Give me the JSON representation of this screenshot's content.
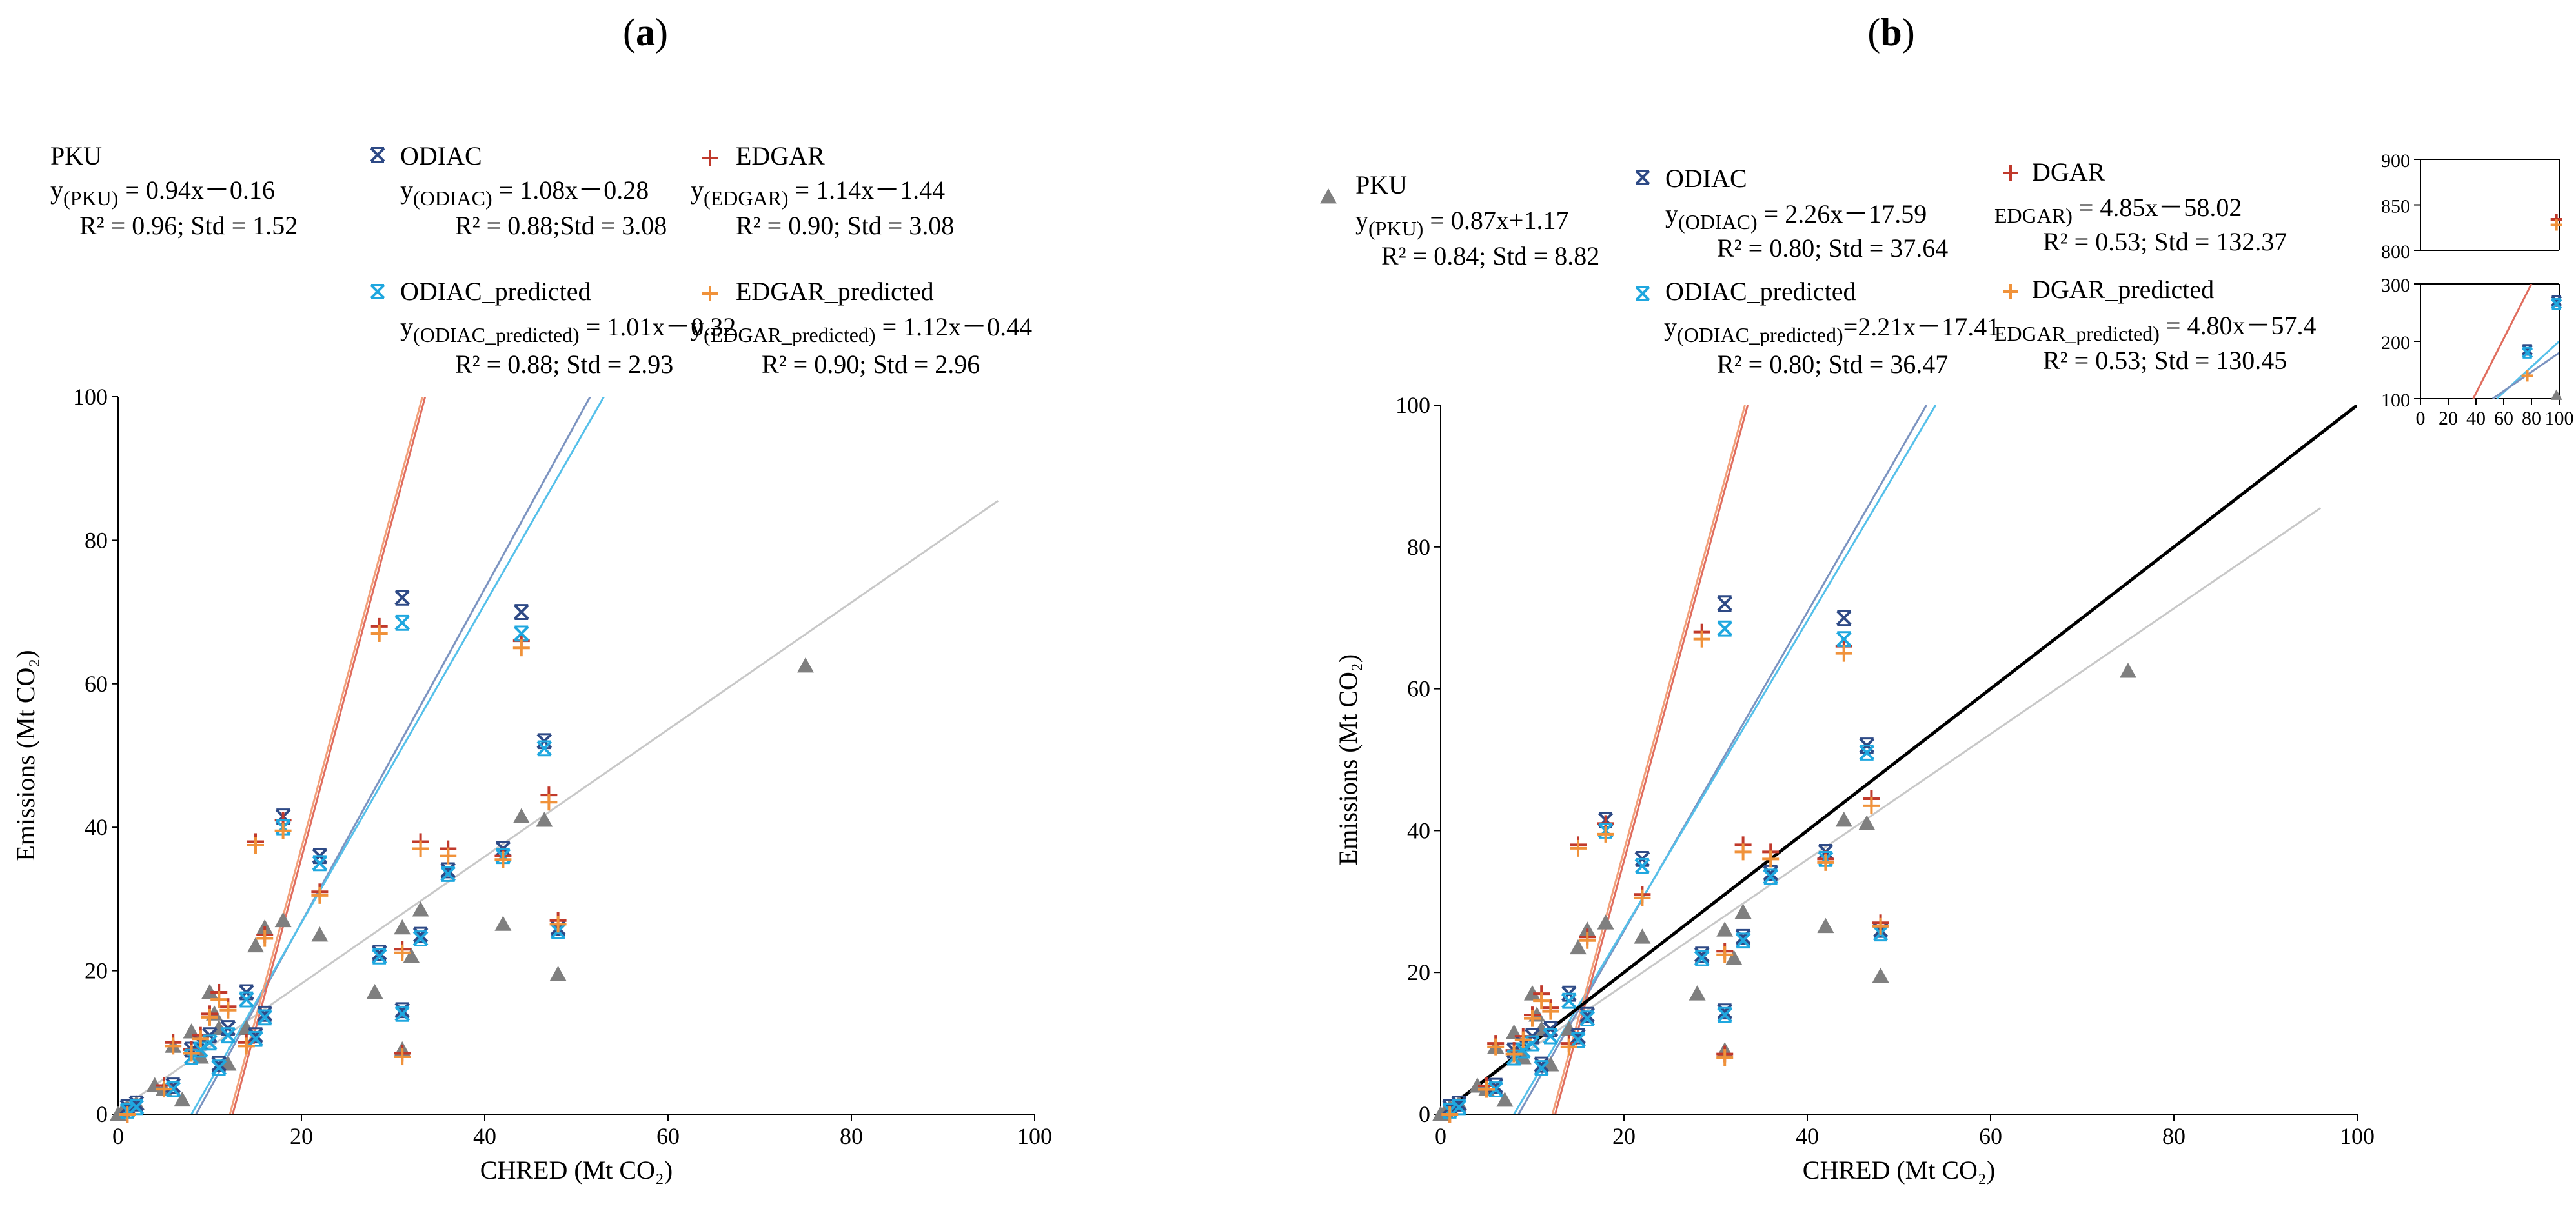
{
  "colors": {
    "PKU": "#7f7f7f",
    "ODIAC": "#2e4a86",
    "EDGAR": "#c0392b",
    "ODIAC_predicted": "#1fa7df",
    "EDGAR_predicted": "#f0923a",
    "fit_PKU": "#c8c8c8",
    "fit_ODIAC": "#7b93c0",
    "fit_ODIAC_pred": "#55c0ea",
    "fit_EDGAR": "#e06d5e",
    "fit_EDGAR_pred": "#f2a07a",
    "one_to_one": "#000000"
  },
  "panels": {
    "a": {
      "label_pre": "(",
      "label_letter": "a",
      "label_post": ")",
      "legend": {
        "pku_name": "PKU",
        "pku_eq_pre": "y",
        "pku_eq_sub": "(PKU)",
        "pku_eq_post": " = 0.94x－0.16",
        "pku_stats": "R² = 0.96; Std = 1.52",
        "odiac_name": "ODIAC",
        "odiac_eq_pre": "y",
        "odiac_eq_sub": "(ODIAC)",
        "odiac_eq_post": " = 1.08x－0.28",
        "odiac_stats": "R² = 0.88;Std = 3.08",
        "edgar_name": "EDGAR",
        "edgar_eq_pre": "y",
        "edgar_eq_sub": "(EDGAR)",
        "edgar_eq_post": " = 1.14x－1.44",
        "edgar_stats": "R² = 0.90; Std = 3.08",
        "odiacp_name": "ODIAC_predicted",
        "odiacp_eq_pre": "y",
        "odiacp_eq_sub": "(ODIAC_predicted)",
        "odiacp_eq_post": " = 1.01x－0.32",
        "odiacp_stats": "R² = 0.88; Std = 2.93",
        "edgarp_name": "EDGAR_predicted",
        "edgarp_eq_pre": "y",
        "edgarp_eq_sub": "(EDGAR_predicted)",
        "edgarp_eq_post": " = 1.12x－0.44",
        "edgarp_stats": "R² = 0.90; Std = 2.96"
      }
    },
    "b": {
      "label_pre": "(",
      "label_letter": "b",
      "label_post": ")",
      "legend": {
        "pku_name": "PKU",
        "pku_eq_pre": "y",
        "pku_eq_sub": "(PKU)",
        "pku_eq_post": " = 0.87x+1.17",
        "pku_stats": "R² = 0.84; Std = 8.82",
        "odiac_name": "ODIAC",
        "odiac_eq_pre": "y",
        "odiac_eq_sub": "(ODIAC)",
        "odiac_eq_post": " = 2.26x－17.59",
        "odiac_stats": "R² = 0.80; Std = 37.64",
        "edgar_name": "DGAR",
        "edgar_eq_sub": "EDGAR)",
        "edgar_eq_post": " = 4.85x－58.02",
        "edgar_stats": "R² = 0.53; Std = 132.37",
        "odiacp_name": "ODIAC_predicted",
        "odiacp_eq_pre": "y",
        "odiacp_eq_sub": "(ODIAC_predicted)",
        "odiacp_eq_post": "=2.21x－17.41",
        "odiacp_stats": "R² = 0.80; Std = 36.47",
        "edgarp_name": "DGAR_predicted",
        "edgarp_eq_sub": "EDGAR_predicted)",
        "edgarp_eq_post": " = 4.80x－57.4",
        "edgarp_stats": "R² = 0.53; Std = 130.45"
      }
    }
  },
  "chart_data": [
    {
      "panel": "a",
      "type": "scatter",
      "title": "",
      "xlabel": "CHRED (Mt CO₂)",
      "ylabel": "Emissions (Mt CO₂)",
      "xlim": [
        0,
        100
      ],
      "ylim": [
        0,
        100
      ],
      "xticks": [
        "0",
        "20",
        "40",
        "60",
        "80",
        "100"
      ],
      "yticks": [
        "0",
        "20",
        "40",
        "60",
        "80",
        "100"
      ],
      "series": [
        {
          "name": "PKU",
          "marker": "triangle",
          "x": [
            0,
            0.5,
            1,
            2,
            4,
            5,
            6,
            7,
            8,
            9,
            10,
            10.5,
            11,
            12,
            14,
            15,
            16,
            18,
            22,
            28,
            31,
            31,
            32,
            33,
            42,
            44,
            46.5,
            48,
            75
          ],
          "y": [
            0,
            0.5,
            1,
            1.5,
            4,
            3.5,
            9.5,
            2,
            11.5,
            8,
            17,
            14,
            12,
            7,
            12,
            23.5,
            26,
            27,
            25,
            17,
            26,
            9,
            22,
            28.5,
            26.5,
            41.5,
            41,
            19.5,
            62.5
          ]
        },
        {
          "name": "ODIAC",
          "marker": "star",
          "x": [
            1,
            2,
            6,
            8,
            9,
            10,
            11,
            12,
            14,
            15,
            16,
            18,
            22,
            28.5,
            31,
            31,
            33,
            36,
            42,
            44,
            46.5,
            48
          ],
          "y": [
            1,
            1.5,
            4,
            9,
            10,
            11,
            7,
            12,
            17,
            11,
            14,
            41.5,
            36,
            22.5,
            72,
            14.5,
            25,
            34,
            37,
            70,
            52,
            26
          ]
        },
        {
          "name": "EDGAR",
          "marker": "plus",
          "x": [
            1,
            5,
            6,
            8,
            9,
            10,
            11,
            12,
            14,
            15,
            16,
            18,
            22,
            28.5,
            31,
            31,
            33,
            36,
            42,
            44,
            47,
            48
          ],
          "y": [
            0,
            4,
            10,
            9,
            11,
            14,
            17,
            15,
            10,
            38,
            25,
            41,
            31,
            68,
            23,
            8.5,
            38,
            37,
            36,
            66,
            44.5,
            27
          ]
        },
        {
          "name": "ODIAC_predicted",
          "marker": "star",
          "x": [
            1,
            2,
            6,
            8,
            9,
            10,
            11,
            12,
            14,
            15,
            16,
            18,
            22,
            28.5,
            31,
            31,
            33,
            36,
            42,
            44,
            46.5,
            48
          ],
          "y": [
            0.5,
            1,
            3.5,
            8,
            9,
            10,
            6.5,
            11,
            16,
            10.5,
            13.5,
            40,
            35,
            22,
            68.5,
            14,
            24.5,
            33.5,
            36,
            67,
            51,
            25.5
          ]
        },
        {
          "name": "EDGAR_predicted",
          "marker": "plus",
          "x": [
            1,
            5,
            6,
            8,
            9,
            10,
            11,
            12,
            14,
            15,
            16,
            18,
            22,
            28.5,
            31,
            31,
            33,
            36,
            42,
            44,
            47,
            48
          ],
          "y": [
            0,
            3.5,
            9.5,
            8.5,
            10.5,
            13.5,
            16,
            14.5,
            9.5,
            37.5,
            24.5,
            39.5,
            30.5,
            67,
            22.5,
            8,
            37,
            36,
            35.5,
            65,
            43.5,
            26.5
          ]
        }
      ],
      "fits": [
        {
          "name": "PKU",
          "x": [
            0,
            96
          ],
          "y": [
            0.5,
            85.5
          ]
        },
        {
          "name": "ODIAC",
          "x": [
            8.5,
            51.5
          ],
          "y": [
            0,
            100
          ]
        },
        {
          "name": "ODIAC_predicted",
          "x": [
            8,
            53
          ],
          "y": [
            0,
            100
          ]
        },
        {
          "name": "EDGAR",
          "x": [
            12.5,
            33.5
          ],
          "y": [
            0,
            100
          ]
        },
        {
          "name": "EDGAR_predicted",
          "x": [
            12.2,
            33.2
          ],
          "y": [
            0,
            100
          ]
        }
      ]
    },
    {
      "panel": "b",
      "type": "scatter",
      "title": "",
      "xlabel": "CHRED (Mt CO₂)",
      "ylabel": "Emissions (Mt CO₂)",
      "xlim": [
        0,
        100
      ],
      "ylim": [
        0,
        100
      ],
      "xticks": [
        "0",
        "20",
        "40",
        "60",
        "80",
        "100"
      ],
      "yticks": [
        "0",
        "20",
        "40",
        "60",
        "80",
        "100"
      ],
      "series": [
        {
          "name": "PKU",
          "marker": "triangle",
          "x": [
            0,
            0.5,
            1,
            2,
            4,
            5,
            6,
            7,
            8,
            9,
            10,
            10.5,
            11,
            12,
            14,
            15,
            16,
            18,
            22,
            28,
            31,
            31,
            32,
            33,
            42,
            44,
            46.5,
            48,
            75
          ],
          "y": [
            0,
            0.5,
            1,
            1.5,
            4,
            3.5,
            9.5,
            2,
            11.5,
            8,
            17,
            14,
            12,
            7,
            12,
            23.5,
            26,
            27,
            25,
            17,
            26,
            9,
            22,
            28.5,
            26.5,
            41.5,
            41,
            19.5,
            62.5
          ]
        },
        {
          "name": "ODIAC",
          "marker": "star",
          "x": [
            1,
            2,
            6,
            8,
            9,
            10,
            11,
            12,
            14,
            15,
            16,
            18,
            22,
            28.5,
            31,
            31,
            33,
            36,
            42,
            44,
            46.5,
            48
          ],
          "y": [
            1,
            1.5,
            4,
            9,
            10,
            11,
            7,
            12,
            17,
            11,
            14,
            41.5,
            36,
            22.5,
            72,
            14.5,
            25,
            34,
            37,
            70,
            52,
            26
          ]
        },
        {
          "name": "EDGAR",
          "marker": "plus",
          "x": [
            1,
            5,
            6,
            8,
            9,
            10,
            11,
            12,
            14,
            15,
            16,
            18,
            22,
            28.5,
            31,
            31,
            33,
            36,
            42,
            44,
            47,
            48
          ],
          "y": [
            0,
            4,
            10,
            9,
            11,
            14,
            17,
            15,
            10,
            38,
            25,
            41,
            31,
            68,
            23,
            8.5,
            38,
            37,
            36,
            66,
            44.5,
            27
          ]
        },
        {
          "name": "ODIAC_predicted",
          "marker": "star",
          "x": [
            1,
            2,
            6,
            8,
            9,
            10,
            11,
            12,
            14,
            15,
            16,
            18,
            22,
            28.5,
            31,
            31,
            33,
            36,
            42,
            44,
            46.5,
            48
          ],
          "y": [
            0.5,
            1,
            3.5,
            8,
            9,
            10,
            6.5,
            11,
            16,
            10.5,
            13.5,
            40,
            35,
            22,
            68.5,
            14,
            24.5,
            33.5,
            36,
            67,
            51,
            25.5
          ]
        },
        {
          "name": "EDGAR_predicted",
          "marker": "plus",
          "x": [
            1,
            5,
            6,
            8,
            9,
            10,
            11,
            12,
            14,
            15,
            16,
            18,
            22,
            28.5,
            31,
            31,
            33,
            36,
            42,
            44,
            47,
            48
          ],
          "y": [
            0,
            3.5,
            9.5,
            8.5,
            10.5,
            13.5,
            16,
            14.5,
            9.5,
            37.5,
            24.5,
            39.5,
            30.5,
            67,
            22.5,
            8,
            37,
            36,
            35.5,
            65,
            43.5,
            26.5
          ]
        }
      ],
      "fits": [
        {
          "name": "PKU",
          "x": [
            0,
            96
          ],
          "y": [
            0.5,
            85.5
          ]
        },
        {
          "name": "ODIAC",
          "x": [
            8.5,
            53
          ],
          "y": [
            0,
            100
          ]
        },
        {
          "name": "ODIAC_predicted",
          "x": [
            8,
            54
          ],
          "y": [
            0,
            100
          ]
        },
        {
          "name": "EDGAR",
          "x": [
            12.5,
            33.5
          ],
          "y": [
            0,
            100
          ]
        },
        {
          "name": "EDGAR_predicted",
          "x": [
            12.2,
            33.2
          ],
          "y": [
            0,
            100
          ]
        },
        {
          "name": "1:1",
          "x": [
            0,
            100
          ],
          "y": [
            0,
            100
          ]
        }
      ]
    },
    {
      "panel": "b-inset-top",
      "type": "scatter",
      "xlim": [
        0,
        100
      ],
      "ylim": [
        800,
        900
      ],
      "yticks": [
        "800",
        "850",
        "900"
      ],
      "series": [
        {
          "name": "EDGAR",
          "marker": "plus",
          "x": [
            98
          ],
          "y": [
            834
          ]
        },
        {
          "name": "EDGAR_predicted",
          "marker": "plus",
          "x": [
            98
          ],
          "y": [
            828
          ]
        }
      ]
    },
    {
      "panel": "b-inset-bottom",
      "type": "scatter",
      "xlim": [
        0,
        100
      ],
      "ylim": [
        100,
        300
      ],
      "xticks": [
        "0",
        "20",
        "40",
        "60",
        "80",
        "100"
      ],
      "yticks": [
        "100",
        "200",
        "300"
      ],
      "series": [
        {
          "name": "PKU",
          "marker": "triangle",
          "x": [
            98
          ],
          "y": [
            106
          ]
        },
        {
          "name": "ODIAC",
          "marker": "star",
          "x": [
            77,
            98
          ],
          "y": [
            185,
            270
          ]
        },
        {
          "name": "ODIAC_predicted",
          "marker": "star",
          "x": [
            77,
            98
          ],
          "y": [
            180,
            265
          ]
        },
        {
          "name": "EDGAR_predicted",
          "marker": "plus",
          "x": [
            77
          ],
          "y": [
            140
          ]
        }
      ],
      "fits": [
        {
          "name": "EDGAR",
          "x": [
            38,
            80
          ],
          "y": [
            100,
            300
          ]
        },
        {
          "name": "ODIAC_predicted",
          "x": [
            55,
            100
          ],
          "y": [
            100,
            200
          ]
        },
        {
          "name": "ODIAC",
          "x": [
            52,
            100
          ],
          "y": [
            100,
            180
          ]
        }
      ]
    }
  ]
}
